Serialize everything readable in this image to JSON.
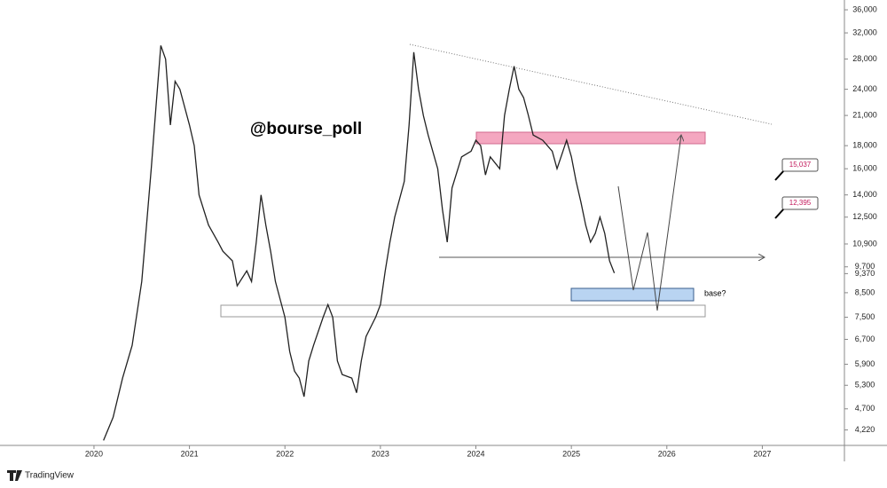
{
  "chart_data": {
    "type": "line",
    "log_scale": true,
    "color": "#222222",
    "watermark": "@bourse_poll",
    "annotations": [
      "15,037",
      "12,395",
      "base?"
    ],
    "xlim": [
      2019.09,
      2027.86
    ],
    "xticks": [
      2020,
      2021,
      2022,
      2023,
      2024,
      2025,
      2026,
      2027
    ],
    "ylim": [
      3900,
      36500
    ],
    "yticks": [
      {
        "value": 36000,
        "label": "36,000"
      },
      {
        "value": 32000,
        "label": "32,000"
      },
      {
        "value": 28000,
        "label": "28,000"
      },
      {
        "value": 24000,
        "label": "24,000"
      },
      {
        "value": 21000,
        "label": "21,000"
      },
      {
        "value": 18000,
        "label": "18,000"
      },
      {
        "value": 16000,
        "label": "16,000"
      },
      {
        "value": 14000,
        "label": "14,000"
      },
      {
        "value": 12500,
        "label": "12,500"
      },
      {
        "value": 10900,
        "label": "10,900"
      },
      {
        "value": 9700,
        "label": "9,700"
      },
      {
        "value": 9370,
        "label": "9,370"
      },
      {
        "value": 8500,
        "label": "8,500"
      },
      {
        "value": 7500,
        "label": "7,500"
      },
      {
        "value": 6700,
        "label": "6,700"
      },
      {
        "value": 5900,
        "label": "5,900"
      },
      {
        "value": 5300,
        "label": "5,300"
      },
      {
        "value": 4700,
        "label": "4,700"
      },
      {
        "value": 4220,
        "label": "4,220"
      }
    ],
    "x": [
      2020.1,
      2020.2,
      2020.3,
      2020.4,
      2020.5,
      2020.55,
      2020.6,
      2020.65,
      2020.7,
      2020.75,
      2020.8,
      2020.85,
      2020.9,
      2021.0,
      2021.05,
      2021.1,
      2021.2,
      2021.3,
      2021.35,
      2021.45,
      2021.5,
      2021.6,
      2021.65,
      2021.7,
      2021.75,
      2021.8,
      2021.85,
      2021.9,
      2022.0,
      2022.05,
      2022.1,
      2022.15,
      2022.2,
      2022.25,
      2022.3,
      2022.4,
      2022.45,
      2022.5,
      2022.55,
      2022.6,
      2022.7,
      2022.75,
      2022.8,
      2022.85,
      2022.95,
      2023.0,
      2023.05,
      2023.1,
      2023.15,
      2023.25,
      2023.3,
      2023.35,
      2023.4,
      2023.45,
      2023.5,
      2023.6,
      2023.65,
      2023.7,
      2023.75,
      2023.85,
      2023.95,
      2024.0,
      2024.05,
      2024.1,
      2024.15,
      2024.25,
      2024.3,
      2024.35,
      2024.4,
      2024.45,
      2024.5,
      2024.55,
      2024.6,
      2024.7,
      2024.8,
      2024.85,
      2024.95,
      2025.0,
      2025.05,
      2025.1,
      2025.15,
      2025.2,
      2025.25,
      2025.3,
      2025.35,
      2025.4,
      2025.45
    ],
    "values": [
      4000,
      4500,
      5500,
      6500,
      9000,
      12000,
      16000,
      22000,
      30000,
      28000,
      20000,
      25000,
      24000,
      20000,
      18000,
      14000,
      12000,
      11000,
      10500,
      10000,
      8800,
      9500,
      9000,
      11000,
      14000,
      12000,
      10500,
      9000,
      7500,
      6300,
      5700,
      5500,
      5000,
      6000,
      6500,
      7500,
      8000,
      7500,
      6000,
      5600,
      5500,
      5100,
      6000,
      6800,
      7500,
      8000,
      9500,
      11000,
      12500,
      15000,
      20000,
      29000,
      24000,
      21000,
      19000,
      16000,
      13000,
      11000,
      14500,
      17000,
      17500,
      18500,
      18000,
      15500,
      17000,
      16000,
      21000,
      24000,
      27000,
      24000,
      23000,
      21000,
      19000,
      18500,
      17500,
      16000,
      18500,
      17000,
      15000,
      13500,
      12000,
      11000,
      11500,
      12500,
      11500,
      10000,
      9400
    ]
  },
  "footer": {
    "brand": "TradingView"
  }
}
